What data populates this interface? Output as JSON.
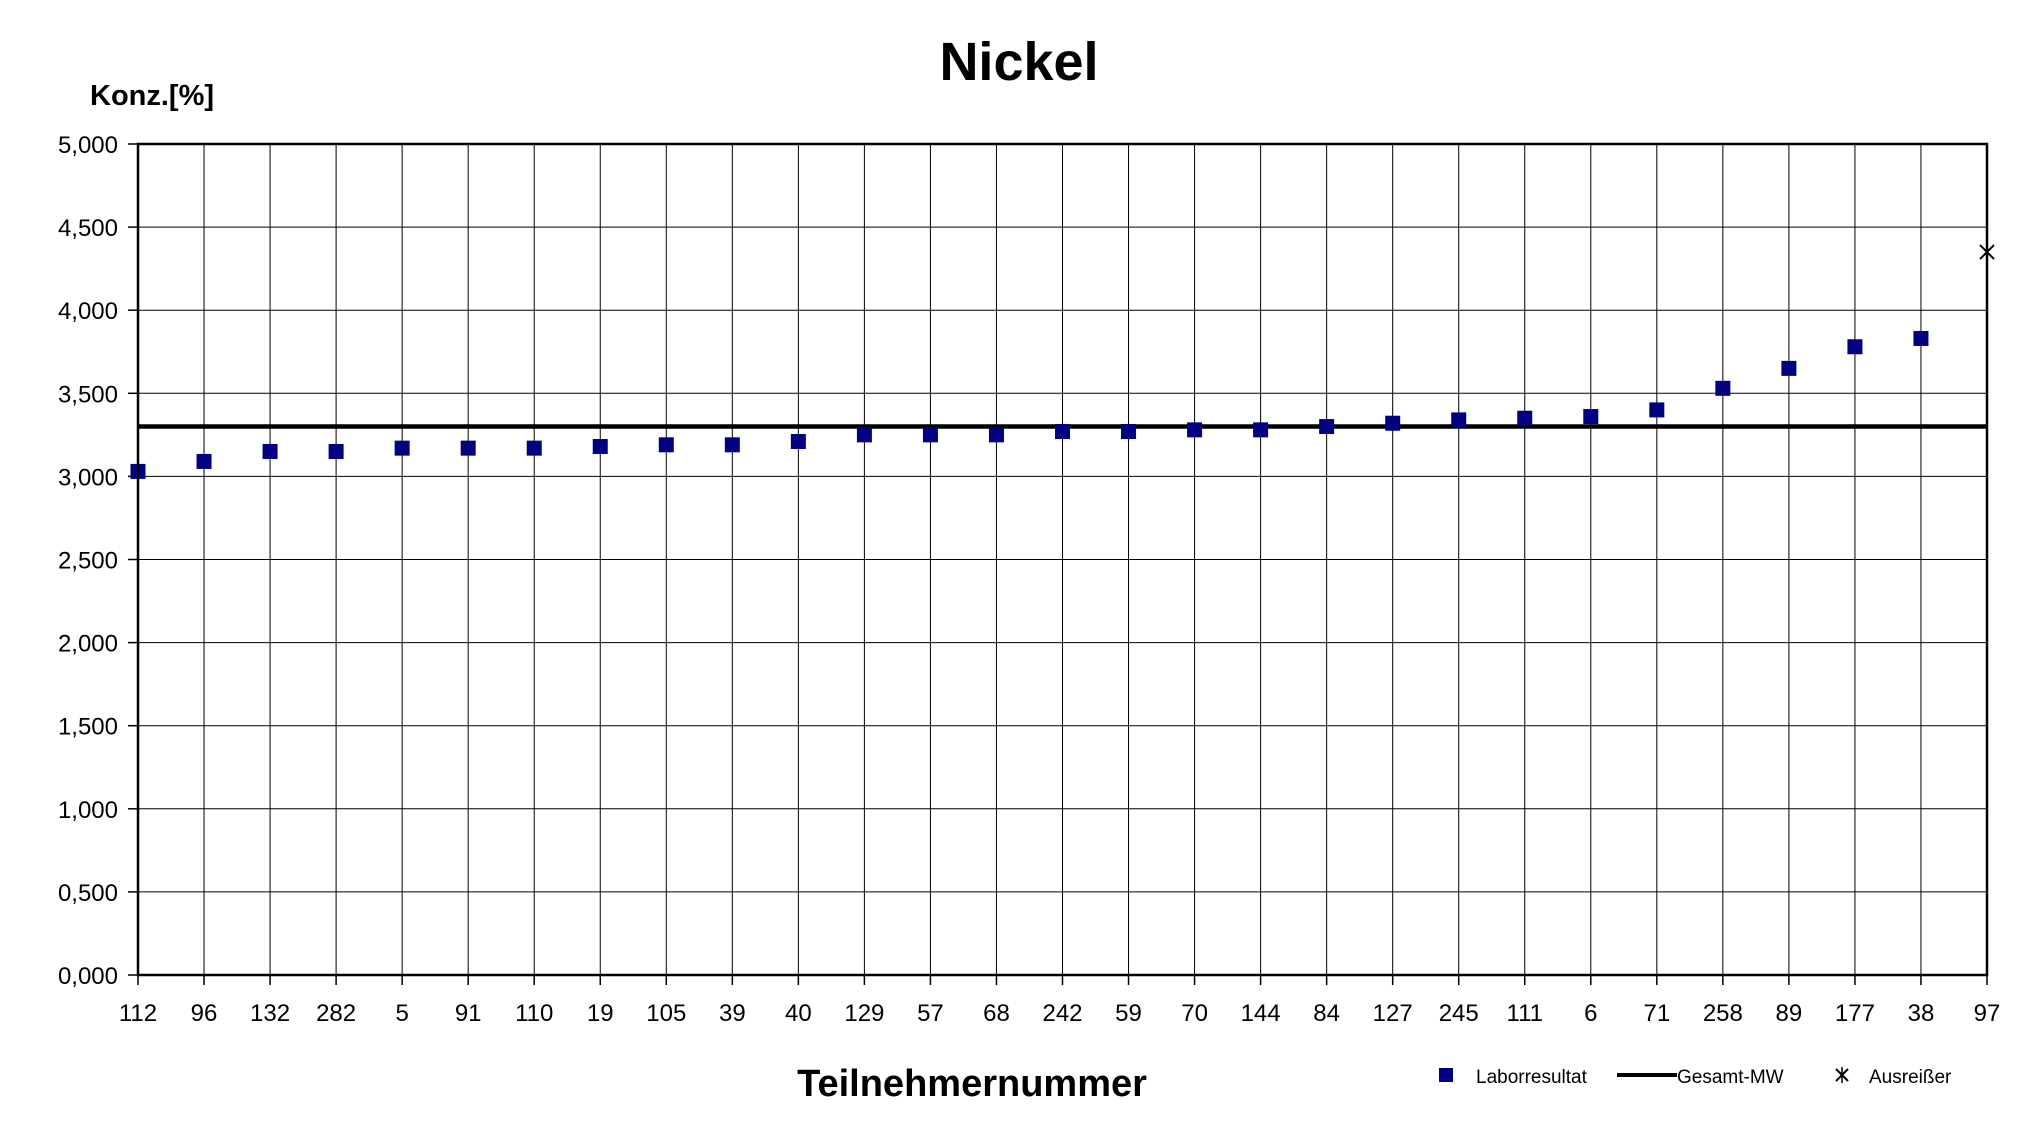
{
  "chart_data": {
    "type": "scatter",
    "title": "Nickel",
    "ylabel": "Konz.[%]",
    "xlabel": "Teilnehmernummer",
    "ylim": [
      0,
      5
    ],
    "yticks": [
      "0,000",
      "0,500",
      "1,000",
      "1,500",
      "2,000",
      "2,500",
      "3,000",
      "3,500",
      "4,000",
      "4,500",
      "5,000"
    ],
    "grid": true,
    "legend_position": "bottom-right",
    "categories": [
      "112",
      "96",
      "132",
      "282",
      "5",
      "91",
      "110",
      "19",
      "105",
      "39",
      "40",
      "129",
      "57",
      "68",
      "242",
      "59",
      "70",
      "144",
      "84",
      "127",
      "245",
      "111",
      "6",
      "71",
      "258",
      "89",
      "177",
      "38",
      "97"
    ],
    "series": [
      {
        "name": "Laborresultat",
        "marker": "square",
        "color": "#000080",
        "values": [
          3.03,
          3.09,
          3.15,
          3.15,
          3.17,
          3.17,
          3.17,
          3.18,
          3.19,
          3.19,
          3.21,
          3.25,
          3.25,
          3.25,
          3.27,
          3.27,
          3.28,
          3.28,
          3.3,
          3.32,
          3.34,
          3.35,
          3.36,
          3.4,
          3.53,
          3.65,
          3.78,
          3.83,
          null
        ]
      },
      {
        "name": "Gesamt-MW",
        "marker": "line",
        "color": "#000000",
        "value": 3.3
      },
      {
        "name": "Ausreißer",
        "marker": "x",
        "color": "#000000",
        "values": [
          null,
          null,
          null,
          null,
          null,
          null,
          null,
          null,
          null,
          null,
          null,
          null,
          null,
          null,
          null,
          null,
          null,
          null,
          null,
          null,
          null,
          null,
          null,
          null,
          null,
          null,
          null,
          null,
          4.35
        ]
      }
    ]
  }
}
